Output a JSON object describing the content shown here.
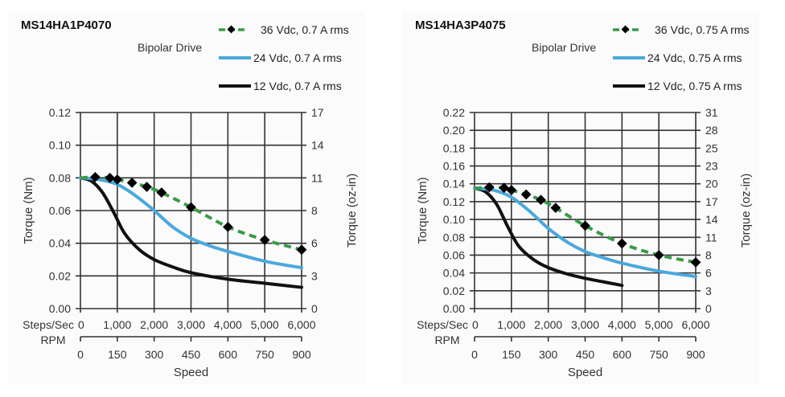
{
  "chart_data": [
    {
      "type": "line",
      "title": "MS14HA1P4070",
      "subtitle": "Bipolar Drive",
      "xlabel": "Speed",
      "ylabel": "Torque (Nm)",
      "y2label": "Torque (oz-in)",
      "x_row_labels": [
        "Steps/Sec",
        "RPM"
      ],
      "xlim": [
        0,
        6000
      ],
      "ylim": [
        0,
        0.12
      ],
      "x_ticks": [
        "0",
        "1,000",
        "2,000",
        "3,000",
        "4,000",
        "5,000",
        "6,000"
      ],
      "x2_ticks": [
        "0",
        "150",
        "300",
        "450",
        "600",
        "750",
        "900"
      ],
      "y_ticks": [
        "0.00",
        "0.02",
        "0.04",
        "0.06",
        "0.08",
        "0.10",
        "0.12"
      ],
      "y2_ticks": [
        "0",
        "3",
        "6",
        "8",
        "11",
        "14",
        "17"
      ],
      "grid": true,
      "legend_position": "top-right",
      "series": [
        {
          "name": "36 Vdc, 0.7 A rms",
          "color": "#3a9a4a",
          "style": "dashed-markers",
          "x": [
            0,
            400,
            800,
            1000,
            1400,
            1800,
            2200,
            3000,
            4000,
            5000,
            6000
          ],
          "y": [
            0.08,
            0.0805,
            0.08,
            0.079,
            0.077,
            0.0745,
            0.071,
            0.062,
            0.05,
            0.042,
            0.036
          ],
          "markers_x": [
            400,
            800,
            1000,
            1400,
            1800,
            2200,
            3000,
            4000,
            5000,
            6000
          ]
        },
        {
          "name": "24 Vdc, 0.7 A rms",
          "color": "#4aa8dc",
          "style": "solid",
          "x": [
            0,
            500,
            1000,
            1500,
            2000,
            2500,
            3000,
            3500,
            4000,
            5000,
            6000
          ],
          "y": [
            0.08,
            0.079,
            0.076,
            0.069,
            0.06,
            0.05,
            0.043,
            0.0385,
            0.035,
            0.029,
            0.025
          ]
        },
        {
          "name": "12 Vdc, 0.7 A rms",
          "color": "#111111",
          "style": "solid",
          "x": [
            0,
            300,
            600,
            900,
            1200,
            1600,
            2000,
            2500,
            3000,
            4000,
            5000,
            6000
          ],
          "y": [
            0.08,
            0.078,
            0.071,
            0.059,
            0.046,
            0.036,
            0.03,
            0.0255,
            0.022,
            0.018,
            0.0155,
            0.013
          ]
        }
      ]
    },
    {
      "type": "line",
      "title": "MS14HA3P4075",
      "subtitle": "Bipolar Drive",
      "xlabel": "Speed",
      "ylabel": "Torque (Nm)",
      "y2label": "Torque (oz-in)",
      "x_row_labels": [
        "Steps/Sec",
        "RPM"
      ],
      "xlim": [
        0,
        6000
      ],
      "ylim": [
        0,
        0.22
      ],
      "x_ticks": [
        "0",
        "1,000",
        "2,000",
        "3,000",
        "4,000",
        "5,000",
        "6,000"
      ],
      "x2_ticks": [
        "0",
        "150",
        "300",
        "450",
        "600",
        "750",
        "900"
      ],
      "y_ticks": [
        "0.00",
        "0.02",
        "0.04",
        "0.06",
        "0.08",
        "0.10",
        "0.12",
        "0.14",
        "0.16",
        "0.18",
        "0.20",
        "0.22"
      ],
      "y2_ticks": [
        "0",
        "3",
        "6",
        "8",
        "11",
        "14",
        "17",
        "20",
        "23",
        "25",
        "28",
        "31"
      ],
      "grid": true,
      "legend_position": "top-right",
      "series": [
        {
          "name": "36 Vdc, 0.75 A rms",
          "color": "#3a9a4a",
          "style": "dashed-markers",
          "x": [
            0,
            400,
            800,
            1000,
            1400,
            1800,
            2200,
            3000,
            4000,
            5000,
            6000
          ],
          "y": [
            0.135,
            0.136,
            0.1355,
            0.133,
            0.128,
            0.122,
            0.113,
            0.093,
            0.073,
            0.06,
            0.052
          ],
          "markers_x": [
            400,
            800,
            1000,
            1400,
            1800,
            2200,
            3000,
            4000,
            5000,
            6000
          ]
        },
        {
          "name": "24 Vdc, 0.75 A rms",
          "color": "#4aa8dc",
          "style": "solid",
          "x": [
            0,
            500,
            1000,
            1500,
            2000,
            2500,
            3000,
            3500,
            4000,
            5000,
            6000
          ],
          "y": [
            0.135,
            0.133,
            0.125,
            0.109,
            0.09,
            0.075,
            0.064,
            0.057,
            0.051,
            0.042,
            0.036
          ]
        },
        {
          "name": "12 Vdc, 0.75 A rms",
          "color": "#111111",
          "style": "solid",
          "x": [
            0,
            300,
            600,
            900,
            1200,
            1600,
            2000,
            2500,
            3000,
            3500,
            4000
          ],
          "y": [
            0.135,
            0.131,
            0.117,
            0.092,
            0.07,
            0.055,
            0.046,
            0.039,
            0.034,
            0.03,
            0.026
          ]
        }
      ]
    }
  ]
}
